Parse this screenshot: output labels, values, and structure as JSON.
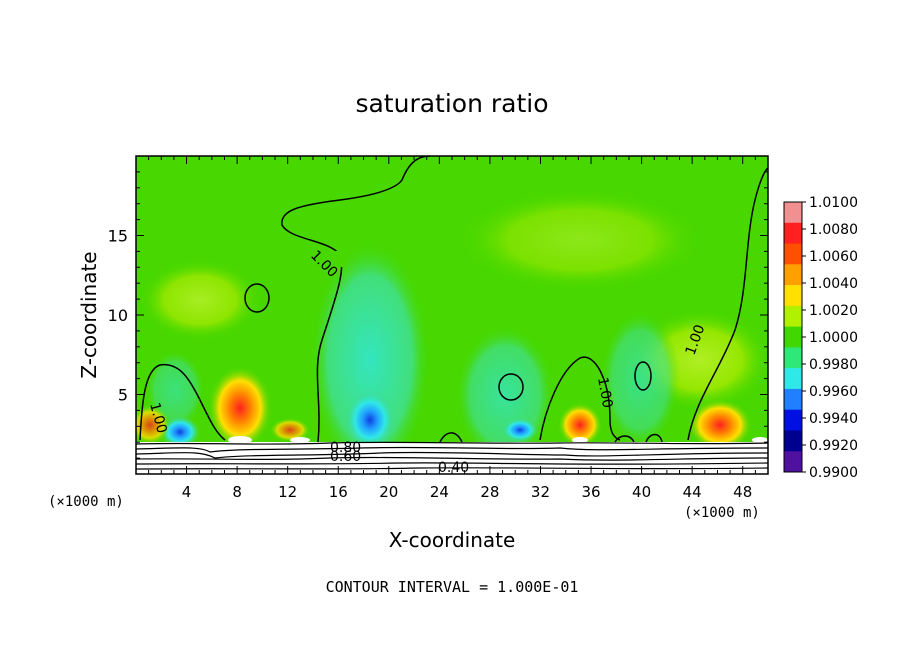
{
  "chart_data": {
    "type": "contour",
    "title": "saturation ratio",
    "xlabel": "X-coordinate",
    "ylabel": "Z-coordinate",
    "x_unit_left": "(×1000 m)",
    "x_unit_right": "(×1000 m)",
    "xlim": [
      0,
      50
    ],
    "ylim": [
      0,
      20
    ],
    "x_ticks": [
      4,
      8,
      12,
      16,
      20,
      24,
      28,
      32,
      36,
      40,
      44,
      48
    ],
    "y_ticks": [
      5,
      10,
      15
    ],
    "footer": "CONTOUR INTERVAL = 1.000E-01",
    "colorbar": {
      "labels": [
        "1.0100",
        "1.0080",
        "1.0060",
        "1.0040",
        "1.0020",
        "1.0000",
        "0.9980",
        "0.9960",
        "0.9940",
        "0.9920",
        "0.9900"
      ],
      "colors": [
        "#f09090",
        "#ff2020",
        "#ff5000",
        "#ffa000",
        "#ffe000",
        "#b0f000",
        "#40d800",
        "#30e878",
        "#30e8e8",
        "#2080ff",
        "#0010e0",
        "#000090",
        "#5010a0"
      ]
    },
    "contour_labels": [
      "1.00",
      "1.00",
      "1.00",
      "1.00",
      "0.80",
      "0.60",
      "0.40"
    ]
  }
}
